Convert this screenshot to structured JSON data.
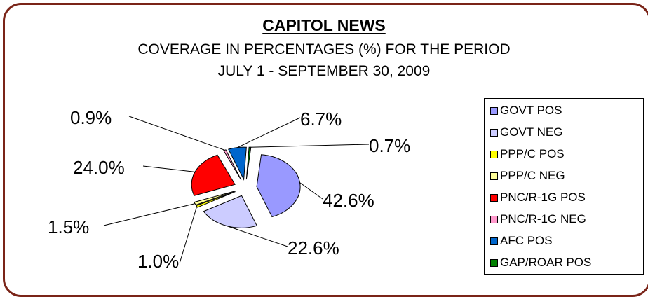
{
  "chart_data": {
    "type": "pie",
    "title": "CAPITOL NEWS",
    "subtitle_line1": "COVERAGE IN PERCENTAGES (%) FOR THE PERIOD",
    "subtitle_line2": "JULY 1 - SEPTEMBER 30, 2009",
    "legend_position": "right",
    "slices": [
      {
        "name": "GOVT  POS",
        "value": 42.6,
        "label": "42.6%",
        "color": "#9999ff"
      },
      {
        "name": "GOVT  NEG",
        "value": 22.6,
        "label": "22.6%",
        "color": "#ccccff"
      },
      {
        "name": "PPP/C POS",
        "value": 1.0,
        "label": "1.0%",
        "color": "#ffff00"
      },
      {
        "name": "PPP/C NEG",
        "value": 1.5,
        "label": "1.5%",
        "color": "#ffff99"
      },
      {
        "name": "PNC/R-1G POS",
        "value": 24.0,
        "label": "24.0%",
        "color": "#ff0000"
      },
      {
        "name": "PNC/R-1G NEG",
        "value": 0.9,
        "label": "0.9%",
        "color": "#ff99cc"
      },
      {
        "name": "AFC POS",
        "value": 6.7,
        "label": "6.7%",
        "color": "#0066cc"
      },
      {
        "name": "GAP/ROAR POS",
        "value": 0.7,
        "label": "0.7%",
        "color": "#008000"
      }
    ]
  }
}
